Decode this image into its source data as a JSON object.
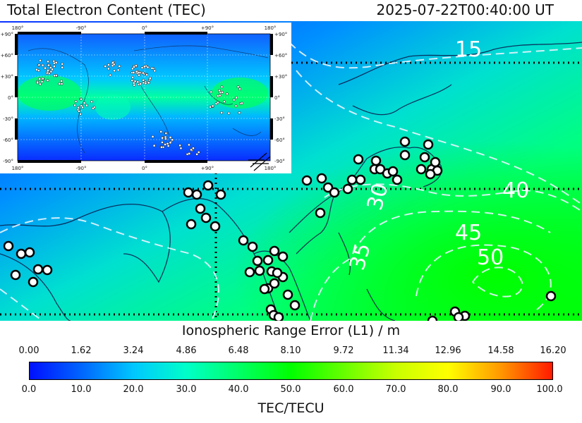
{
  "header": {
    "title": "Total Electron Content (TEC)",
    "timestamp": "2025-07-22T00:40:00 UT"
  },
  "regional_map": {
    "contour_labels": [
      "15",
      "40",
      "45",
      "50",
      "30",
      "35"
    ],
    "gradient_colors": [
      "#0a3cff",
      "#0090ff",
      "#00e0e0",
      "#00ff80",
      "#00ff00"
    ]
  },
  "inset_map": {
    "lon_labels": [
      "180°",
      "-90°",
      "0°",
      "+90°",
      "180°"
    ],
    "lat_labels": [
      "+90°",
      "+60°",
      "+30°",
      "0°",
      "-30°",
      "-60°",
      "-90°"
    ]
  },
  "colorbar": {
    "top_label": "Ionospheric Range Error (L1) / m",
    "top_ticks": [
      "0.00",
      "1.62",
      "3.24",
      "4.86",
      "6.48",
      "8.10",
      "9.72",
      "11.34",
      "12.96",
      "14.58",
      "16.20"
    ],
    "bottom_ticks": [
      "0.0",
      "10.0",
      "20.0",
      "30.0",
      "40.0",
      "50.0",
      "60.0",
      "70.0",
      "80.0",
      "90.0",
      "100.0"
    ],
    "bottom_label": "TEC/TECU"
  }
}
